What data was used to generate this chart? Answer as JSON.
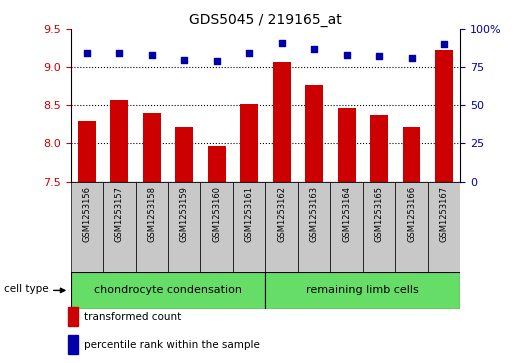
{
  "title": "GDS5045 / 219165_at",
  "samples": [
    "GSM1253156",
    "GSM1253157",
    "GSM1253158",
    "GSM1253159",
    "GSM1253160",
    "GSM1253161",
    "GSM1253162",
    "GSM1253163",
    "GSM1253164",
    "GSM1253165",
    "GSM1253166",
    "GSM1253167"
  ],
  "bar_values": [
    8.3,
    8.57,
    8.4,
    8.22,
    7.97,
    8.52,
    9.07,
    8.77,
    8.47,
    8.37,
    8.22,
    9.22
  ],
  "dot_values": [
    84,
    84,
    83,
    80,
    79,
    84,
    91,
    87,
    83,
    82,
    81,
    90
  ],
  "bar_bottom": 7.5,
  "ylim_left": [
    7.5,
    9.5
  ],
  "ylim_right": [
    0,
    100
  ],
  "yticks_left": [
    7.5,
    8.0,
    8.5,
    9.0,
    9.5
  ],
  "yticks_right": [
    0,
    25,
    50,
    75,
    100
  ],
  "ytick_labels_right": [
    "0",
    "25",
    "50",
    "75",
    "100%"
  ],
  "bar_color": "#CC0000",
  "dot_color": "#0000AA",
  "group1_label": "chondrocyte condensation",
  "group2_label": "remaining limb cells",
  "group1_count": 6,
  "group2_count": 6,
  "cell_type_label": "cell type",
  "legend1": "transformed count",
  "legend2": "percentile rank within the sample",
  "bg_color": "#C8C8C8",
  "group_color": "#66DD66",
  "plot_bg": "#FFFFFF",
  "fig_width": 5.23,
  "fig_height": 3.63,
  "dpi": 100
}
